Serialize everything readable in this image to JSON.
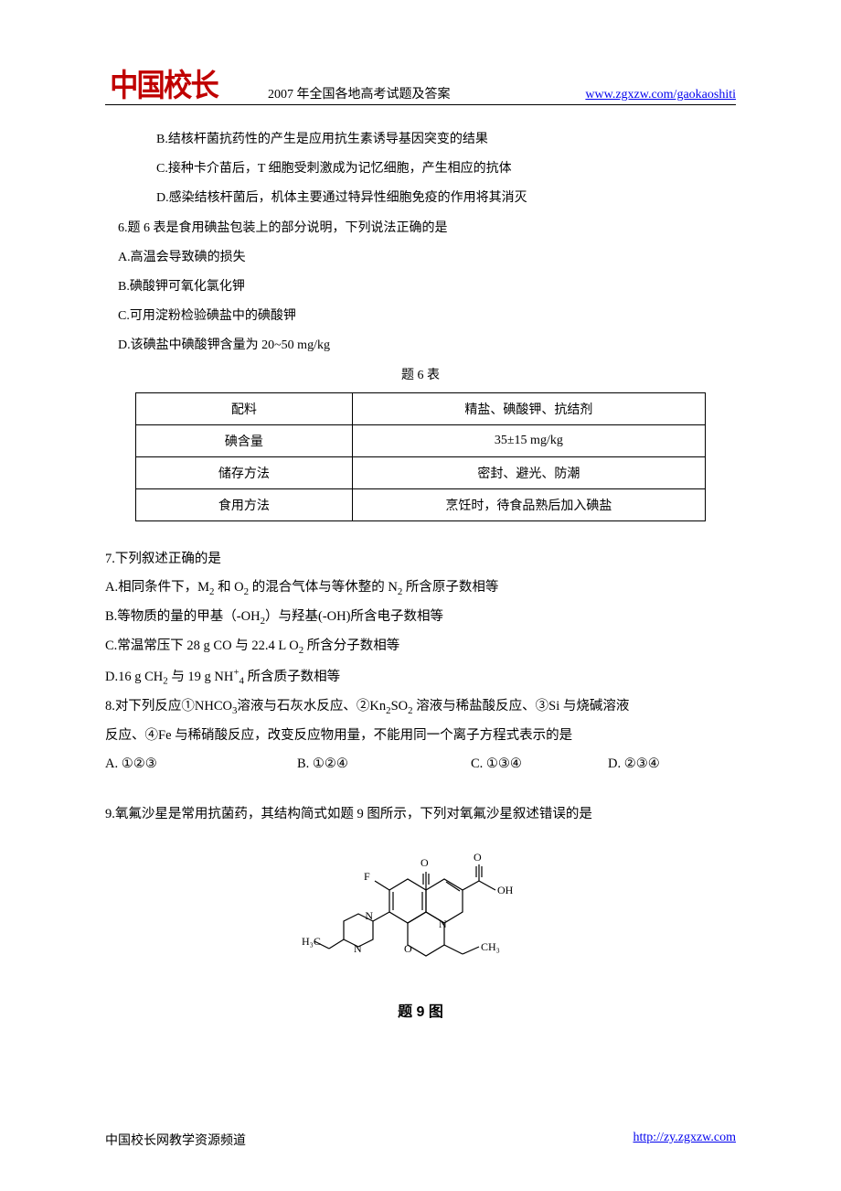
{
  "header": {
    "logo_text": "中国校长",
    "title": "2007 年全国各地高考试题及答案",
    "link": "www.zgxzw.com/gaokaoshiti"
  },
  "q5": {
    "optB": "B.结核杆菌抗药性的产生是应用抗生素诱导基因突变的结果",
    "optC": "C.接种卡介苗后，T 细胞受刺激成为记忆细胞，产生相应的抗体",
    "optD": "D.感染结核杆菌后，机体主要通过特异性细胞免疫的作用将其消灭"
  },
  "q6": {
    "stem": "6.题 6 表是食用碘盐包装上的部分说明，下列说法正确的是",
    "optA": "A.高温会导致碘的损失",
    "optB": "B.碘酸钾可氧化氯化钾",
    "optC": "C.可用淀粉检验碘盐中的碘酸钾",
    "optD": "D.该碘盐中碘酸钾含量为 20~50 mg/kg",
    "table_caption": "题 6 表",
    "table": {
      "rows": [
        [
          "配料",
          "精盐、碘酸钾、抗结剂"
        ],
        [
          "碘含量",
          "35±15 mg/kg"
        ],
        [
          "储存方法",
          "密封、避光、防潮"
        ],
        [
          "食用方法",
          "烹饪时，待食品熟后加入碘盐"
        ]
      ]
    }
  },
  "q7": {
    "stem": "7.下列叙述正确的是",
    "optA_html": "A.相同条件下，M<sub>2</sub> 和 O<sub>2</sub> 的混合气体与等休整的 N<sub>2</sub> 所含原子数相等",
    "optB_html": "B.等物质的量的甲基（-OH<sub>2</sub>）与羟基(-OH)所含电子数相等",
    "optC_html": "C.常温常压下 28 g CO 与 22.4 L O<sub>2</sub> 所含分子数相等",
    "optD_html": "D.16 g CH<sub>2</sub> 与 19 g NH<sup>+</sup><sub>4</sub> 所含质子数相等"
  },
  "q8": {
    "stem_html": "8.对下列反应①NHCO<sub>3</sub>溶液与石灰水反应、②Kn<sub>2</sub>SO<sub>2</sub> 溶液与稀盐酸反应、③Si 与烧碱溶液",
    "stem2": "反应、④Fe 与稀硝酸反应，改变反应物用量，不能用同一个离子方程式表示的是",
    "optA": "A. ①②③",
    "optB": "B. ①②④",
    "optC": "C. ①③④",
    "optD": "D. ②③④"
  },
  "q9": {
    "stem": "9.氧氟沙星是常用抗菌药，其结构简式如题 9 图所示，下列对氧氟沙星叙述错误的是",
    "fig_caption": "题 9 图",
    "fig": {
      "stroke": "#000000",
      "stroke_width": 1.2,
      "labels": {
        "O1": "O",
        "O2": "O",
        "OH": "OH",
        "F": "F",
        "N1": "N",
        "N2": "N",
        "N3": "N",
        "O3": "O",
        "CH3a": "CH₃",
        "H3C": "H₃C"
      }
    }
  },
  "footer": {
    "left": "中国校长网教学资源频道",
    "right": "http://zy.zgxzw.com"
  }
}
